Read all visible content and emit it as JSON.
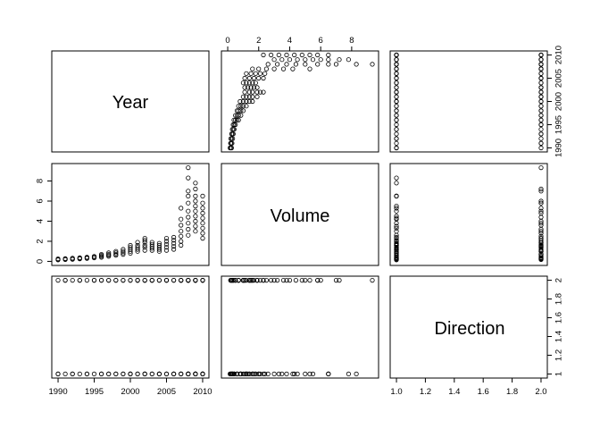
{
  "chart_data": {
    "type": "scatter",
    "variables": [
      {
        "name": "Year",
        "range": [
          1990,
          2010
        ],
        "ticks": [
          1990,
          1995,
          2000,
          2005,
          2010
        ]
      },
      {
        "name": "Volume",
        "range": [
          0,
          9.33
        ],
        "ticks": [
          0,
          2,
          4,
          6,
          8
        ]
      },
      {
        "name": "Direction",
        "range": [
          1,
          2
        ],
        "ticks": [
          1.0,
          1.2,
          1.4,
          1.6,
          1.8,
          2.0
        ],
        "tick_labels_bottom": [
          "1.0",
          "1.2",
          "1.4",
          "1.6",
          "1.8",
          "2.0"
        ]
      }
    ],
    "years": [
      1990,
      1991,
      1992,
      1993,
      1994,
      1995,
      1996,
      1997,
      1998,
      1999,
      2000,
      2001,
      2002,
      2003,
      2004,
      2005,
      2006,
      2007,
      2008,
      2009,
      2010
    ],
    "volume_by_year": [
      [
        0.15,
        0.2,
        0.25
      ],
      [
        0.18,
        0.22,
        0.28
      ],
      [
        0.2,
        0.25,
        0.32
      ],
      [
        0.25,
        0.3,
        0.36
      ],
      [
        0.3,
        0.36,
        0.42
      ],
      [
        0.35,
        0.42,
        0.5
      ],
      [
        0.4,
        0.5,
        0.6,
        0.7
      ],
      [
        0.5,
        0.6,
        0.7,
        0.85
      ],
      [
        0.6,
        0.7,
        0.85,
        1.0
      ],
      [
        0.7,
        0.85,
        1.0,
        1.2
      ],
      [
        0.8,
        1.0,
        1.2,
        1.4,
        1.6
      ],
      [
        1.0,
        1.2,
        1.4,
        1.6,
        1.9
      ],
      [
        1.1,
        1.4,
        1.6,
        1.9,
        2.1,
        2.3
      ],
      [
        1.1,
        1.3,
        1.5,
        1.7,
        1.9
      ],
      [
        1.0,
        1.2,
        1.4,
        1.6,
        1.8
      ],
      [
        1.1,
        1.4,
        1.7,
        2.0,
        2.3
      ],
      [
        1.2,
        1.5,
        1.8,
        2.1,
        2.4
      ],
      [
        1.6,
        2.0,
        2.5,
        3.0,
        3.6,
        4.2,
        5.3
      ],
      [
        2.6,
        3.2,
        3.8,
        4.4,
        5.0,
        5.8,
        6.5,
        7.0,
        8.3,
        9.33
      ],
      [
        3.0,
        3.5,
        4.0,
        4.5,
        5.0,
        5.5,
        6.0,
        6.5,
        7.2,
        7.8
      ],
      [
        2.3,
        2.8,
        3.3,
        3.8,
        4.3,
        4.8,
        5.3,
        5.8,
        6.5
      ]
    ],
    "direction_values": [
      1,
      2
    ],
    "title": "",
    "grid": false,
    "legend": "none"
  }
}
